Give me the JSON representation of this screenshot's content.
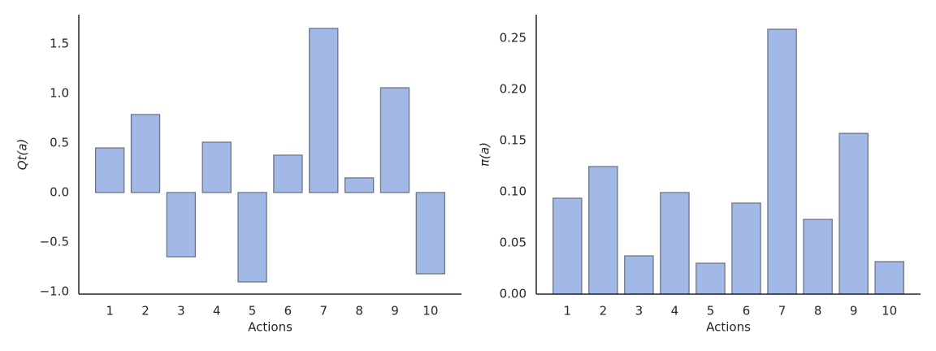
{
  "chart_data": [
    {
      "type": "bar",
      "x_label": "Actions",
      "y_label": "Qt(a)",
      "categories": [
        "1",
        "2",
        "3",
        "4",
        "5",
        "6",
        "7",
        "8",
        "9",
        "10"
      ],
      "values": [
        0.45,
        0.787,
        -0.648,
        0.508,
        -0.902,
        0.377,
        1.656,
        0.148,
        1.057,
        -0.82
      ],
      "color": "#a2b9e8",
      "ylim": [
        -1.025,
        1.795
      ],
      "yticks": [
        {
          "value": -1.0,
          "label": "−1.0"
        },
        {
          "value": -0.5,
          "label": "−0.5"
        },
        {
          "value": 0.0,
          "label": "0.0"
        },
        0.5,
        {
          "value": 1.0,
          "label": "1.0"
        },
        1.5
      ]
    },
    {
      "type": "bar",
      "x_label": "Actions",
      "y_label": "π(a)",
      "categories": [
        "1",
        "2",
        "3",
        "4",
        "5",
        "6",
        "7",
        "8",
        "9",
        "10"
      ],
      "values": [
        0.0937,
        0.1246,
        0.0373,
        0.0992,
        0.0302,
        0.0889,
        0.2587,
        0.073,
        0.157,
        0.0317
      ],
      "color": "#a2b9e8",
      "ylim": [
        0,
        0.273
      ],
      "yticks": [
        {
          "value": 0,
          "label": "0.00"
        },
        {
          "value": 0.05,
          "label": "0.05"
        },
        {
          "value": 0.1,
          "label": "0.10"
        },
        {
          "value": 0.15,
          "label": "0.15"
        },
        {
          "value": 0.2,
          "label": "0.20"
        },
        {
          "value": 0.25,
          "label": "0.25"
        }
      ]
    }
  ]
}
